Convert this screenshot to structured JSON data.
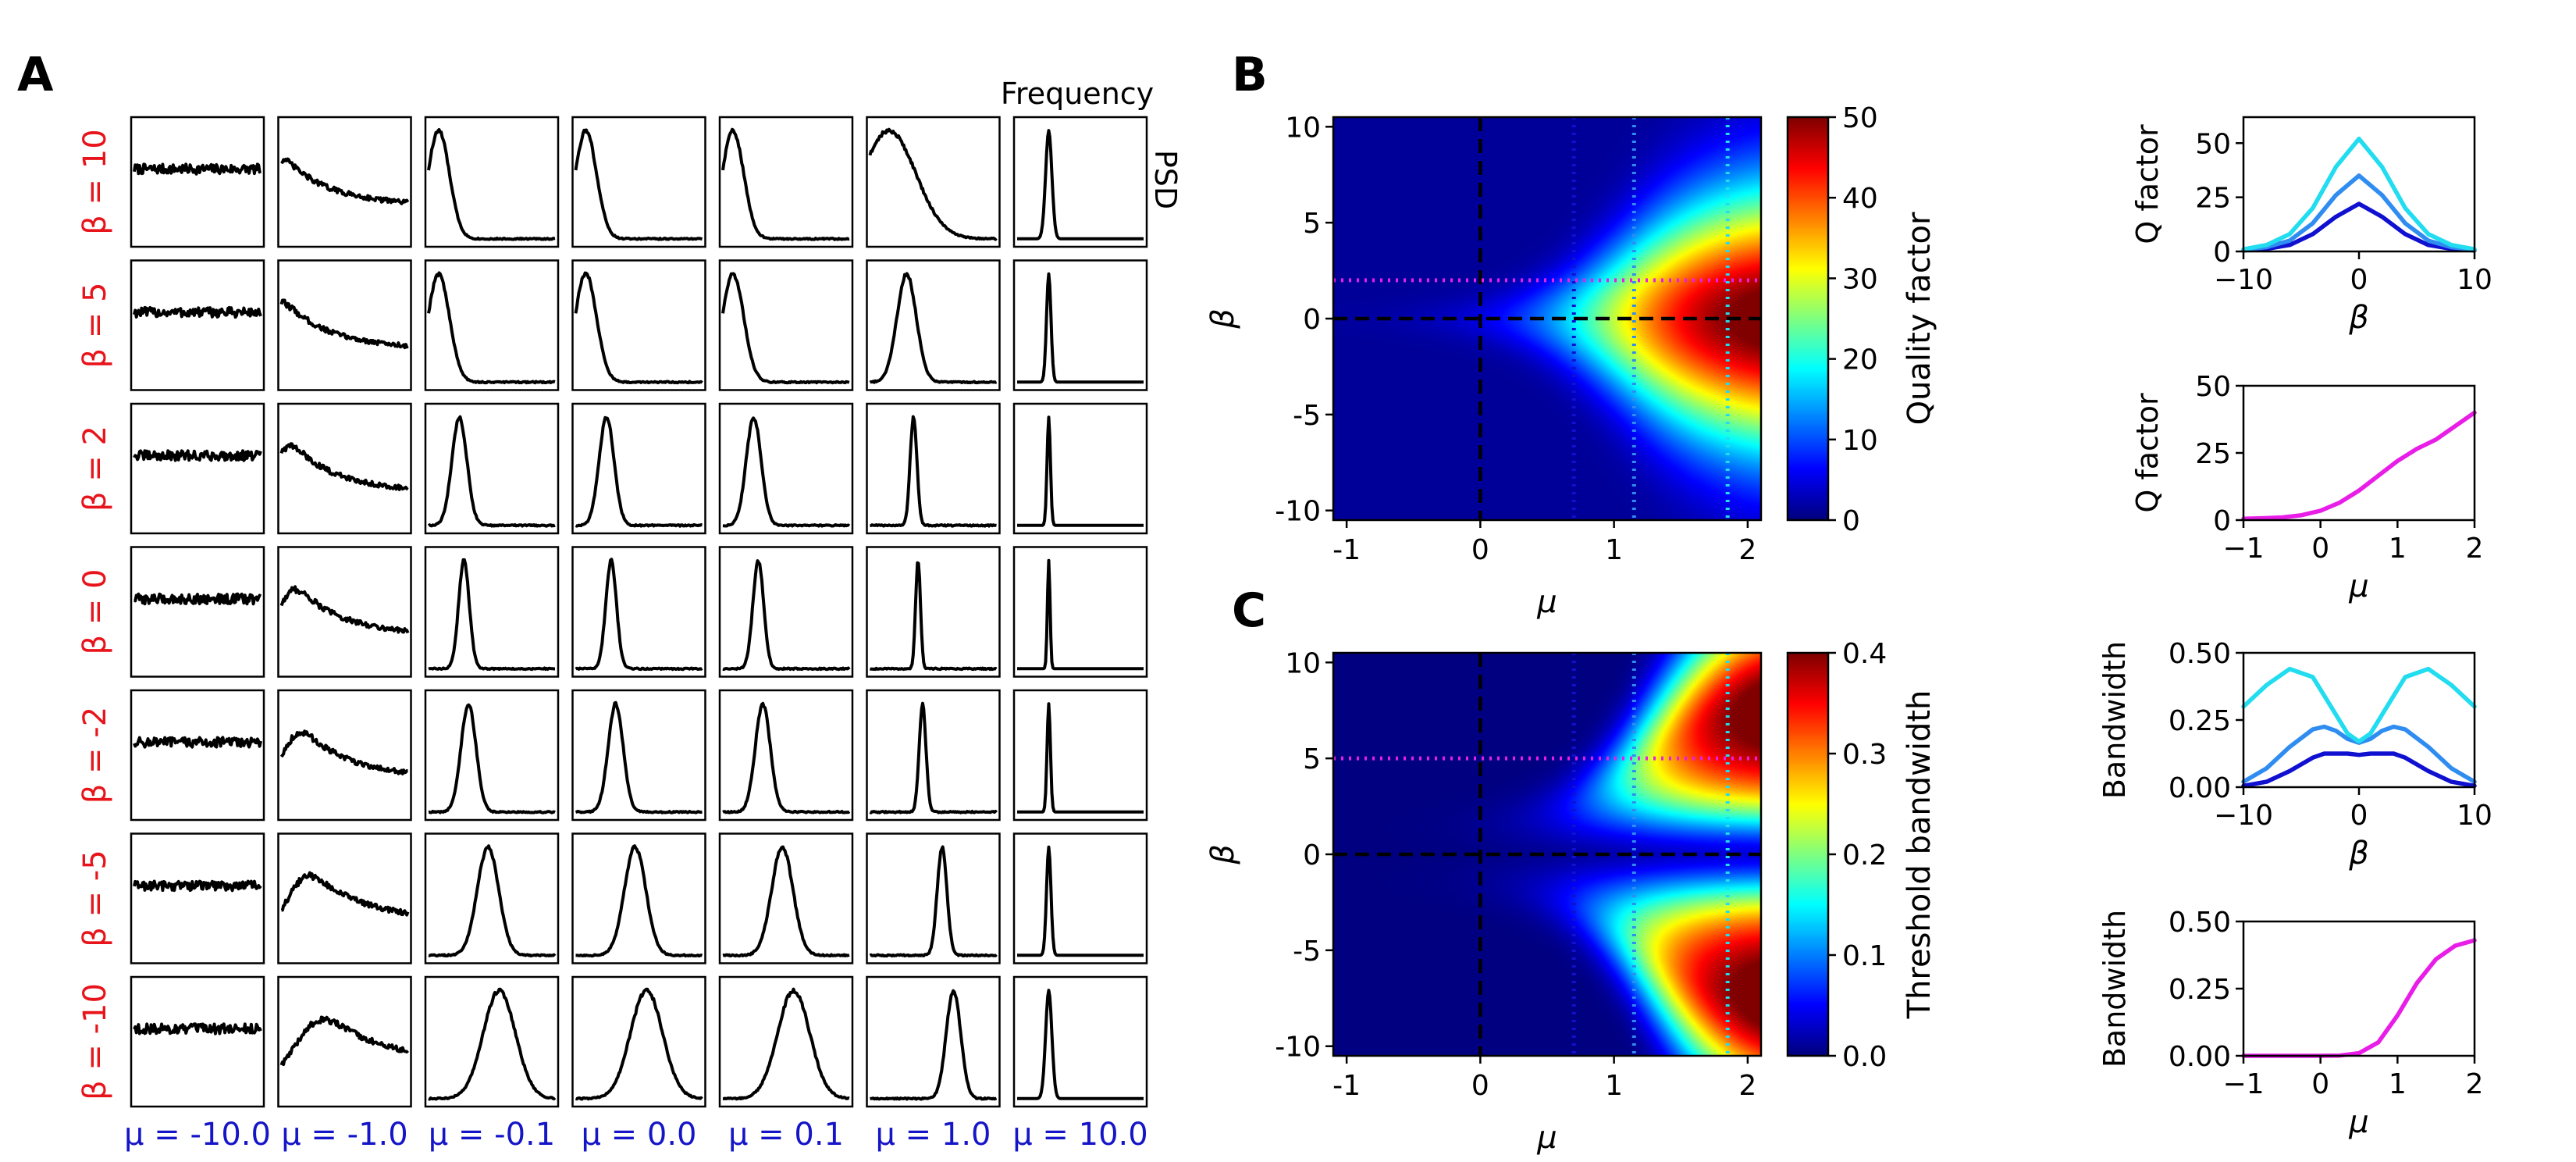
{
  "panel_labels": {
    "a": "A",
    "b": "B",
    "c": "C"
  },
  "panel_a": {
    "top_label": "Frequency",
    "right_label": "PSD",
    "row_labels": [
      "β = 10",
      "β = 5",
      "β = 2",
      "β = 0",
      "β = -2",
      "β = -5",
      "β = -10"
    ],
    "col_labels": [
      "μ = -10.0",
      "μ = -1.0",
      "μ = -0.1",
      "μ = 0.0",
      "μ = 0.1",
      "μ = 1.0",
      "μ = 10.0"
    ],
    "row_label_color": "#e8141b",
    "col_label_color": "#1515c8"
  },
  "colors": {
    "dark_blue": "#1010d0",
    "mid_blue": "#2f8cf0",
    "cyan": "#22dcf0",
    "magenta": "#e81ee8",
    "black": "#000000"
  },
  "chart_data": [
    {
      "id": "B",
      "type": "heatmap",
      "xlabel": "μ",
      "ylabel": "β",
      "xlim": [
        -1.1,
        2.1
      ],
      "ylim": [
        -10.5,
        10.5
      ],
      "xticks": [
        -1,
        0,
        1,
        2
      ],
      "xtick_labels": [
        "-1",
        "0",
        "1",
        "2"
      ],
      "yticks": [
        10,
        5,
        0,
        -5,
        -10
      ],
      "ytick_labels": [
        "10",
        "5",
        "0",
        "-5",
        "-10"
      ],
      "colorbar_label": "Quality factor",
      "colorbar_range": [
        0,
        50
      ],
      "colorbar_ticks": [
        0,
        10,
        20,
        30,
        40,
        50
      ],
      "colorbar_tick_labels": [
        "0",
        "10",
        "20",
        "30",
        "40",
        "50"
      ],
      "colormap": "jet",
      "black_dashed_lines": {
        "mu": 0,
        "beta": 0
      },
      "dotted_mu_lines": [
        0.7,
        1.15,
        1.85
      ],
      "dotted_beta_line": 2
    },
    {
      "id": "C",
      "type": "heatmap",
      "xlabel": "μ",
      "ylabel": "β",
      "xlim": [
        -1.1,
        2.1
      ],
      "ylim": [
        -10.5,
        10.5
      ],
      "xticks": [
        -1,
        0,
        1,
        2
      ],
      "xtick_labels": [
        "-1",
        "0",
        "1",
        "2"
      ],
      "yticks": [
        10,
        5,
        0,
        -5,
        -10
      ],
      "ytick_labels": [
        "10",
        "5",
        "0",
        "-5",
        "-10"
      ],
      "colorbar_label": "Threshold bandwidth",
      "colorbar_range": [
        0,
        0.4
      ],
      "colorbar_ticks": [
        0,
        0.1,
        0.2,
        0.3,
        0.4
      ],
      "colorbar_tick_labels": [
        "0.0",
        "0.1",
        "0.2",
        "0.3",
        "0.4"
      ],
      "colormap": "jet",
      "black_dashed_lines": {
        "mu": 0,
        "beta": 0
      },
      "dotted_mu_lines": [
        0.7,
        1.15,
        1.85
      ],
      "dotted_beta_line": 5
    },
    {
      "id": "B1",
      "type": "line",
      "xlabel": "β",
      "ylabel": "Q factor",
      "xlim": [
        -10,
        10
      ],
      "ylim": [
        0,
        62
      ],
      "xticks": [
        -10,
        0,
        10
      ],
      "xtick_labels": [
        "−10",
        "0",
        "10"
      ],
      "yticks": [
        0,
        25,
        50
      ],
      "ytick_labels": [
        "0",
        "25",
        "50"
      ],
      "x": [
        -10,
        -8,
        -6,
        -4,
        -2,
        0,
        2,
        4,
        6,
        8,
        10
      ],
      "series": [
        {
          "name": "μ = 0.7",
          "color": "#1010d0",
          "values": [
            0.5,
            1.2,
            3,
            8,
            16,
            22,
            16,
            8,
            3,
            1.2,
            0.5
          ]
        },
        {
          "name": "μ = 1.15",
          "color": "#2f8cf0",
          "values": [
            0.8,
            2,
            5,
            13,
            26,
            35,
            26,
            13,
            5,
            2,
            0.8
          ]
        },
        {
          "name": "μ = 1.85",
          "color": "#22dcf0",
          "values": [
            1,
            3,
            8,
            20,
            39,
            52,
            39,
            20,
            8,
            3,
            1
          ]
        }
      ]
    },
    {
      "id": "B2",
      "type": "line",
      "xlabel": "μ",
      "ylabel": "Q factor",
      "xlim": [
        -1,
        2
      ],
      "ylim": [
        0,
        50
      ],
      "xticks": [
        -1,
        0,
        1,
        2
      ],
      "xtick_labels": [
        "−1",
        "0",
        "1",
        "2"
      ],
      "yticks": [
        0,
        25,
        50
      ],
      "ytick_labels": [
        "0",
        "25",
        "50"
      ],
      "x": [
        -1,
        -0.75,
        -0.5,
        -0.25,
        0,
        0.25,
        0.5,
        0.75,
        1,
        1.25,
        1.5,
        1.75,
        2
      ],
      "series": [
        {
          "name": "β = 2",
          "color": "#e81ee8",
          "values": [
            0.5,
            0.7,
            1,
            1.8,
            3.5,
            6.5,
            11,
            16.5,
            22,
            26.5,
            30,
            35,
            40
          ]
        }
      ]
    },
    {
      "id": "C1",
      "type": "line",
      "xlabel": "β",
      "ylabel": "Bandwidth",
      "xlim": [
        -10,
        10
      ],
      "ylim": [
        0,
        0.5
      ],
      "xticks": [
        -10,
        0,
        10
      ],
      "xtick_labels": [
        "−10",
        "0",
        "10"
      ],
      "yticks": [
        0,
        0.25,
        0.5
      ],
      "ytick_labels": [
        "0.00",
        "0.25",
        "0.50"
      ],
      "x": [
        -10,
        -8,
        -6,
        -4,
        -3,
        -2,
        -1,
        0,
        1,
        2,
        3,
        4,
        6,
        8,
        10
      ],
      "series": [
        {
          "name": "μ = 0.7",
          "color": "#1010d0",
          "values": [
            0.005,
            0.02,
            0.06,
            0.11,
            0.125,
            0.125,
            0.125,
            0.12,
            0.125,
            0.125,
            0.125,
            0.11,
            0.06,
            0.02,
            0.005
          ]
        },
        {
          "name": "μ = 1.15",
          "color": "#2f8cf0",
          "values": [
            0.02,
            0.07,
            0.15,
            0.215,
            0.225,
            0.21,
            0.18,
            0.165,
            0.18,
            0.21,
            0.225,
            0.215,
            0.15,
            0.07,
            0.02
          ]
        },
        {
          "name": "μ = 1.85",
          "color": "#22dcf0",
          "values": [
            0.3,
            0.38,
            0.44,
            0.41,
            0.34,
            0.27,
            0.2,
            0.17,
            0.2,
            0.27,
            0.34,
            0.41,
            0.44,
            0.38,
            0.3
          ]
        }
      ]
    },
    {
      "id": "C2",
      "type": "line",
      "xlabel": "μ",
      "ylabel": "Bandwidth",
      "xlim": [
        -1,
        2
      ],
      "ylim": [
        0,
        0.5
      ],
      "xticks": [
        -1,
        0,
        1,
        2
      ],
      "xtick_labels": [
        "−1",
        "0",
        "1",
        "2"
      ],
      "yticks": [
        0,
        0.25,
        0.5
      ],
      "ytick_labels": [
        "0.00",
        "0.25",
        "0.50"
      ],
      "x": [
        -1,
        -0.5,
        0,
        0.25,
        0.5,
        0.75,
        1,
        1.25,
        1.5,
        1.75,
        2
      ],
      "series": [
        {
          "name": "β = 5",
          "color": "#e81ee8",
          "values": [
            0,
            0,
            0,
            0.001,
            0.01,
            0.05,
            0.15,
            0.27,
            0.36,
            0.41,
            0.43
          ]
        }
      ]
    }
  ]
}
